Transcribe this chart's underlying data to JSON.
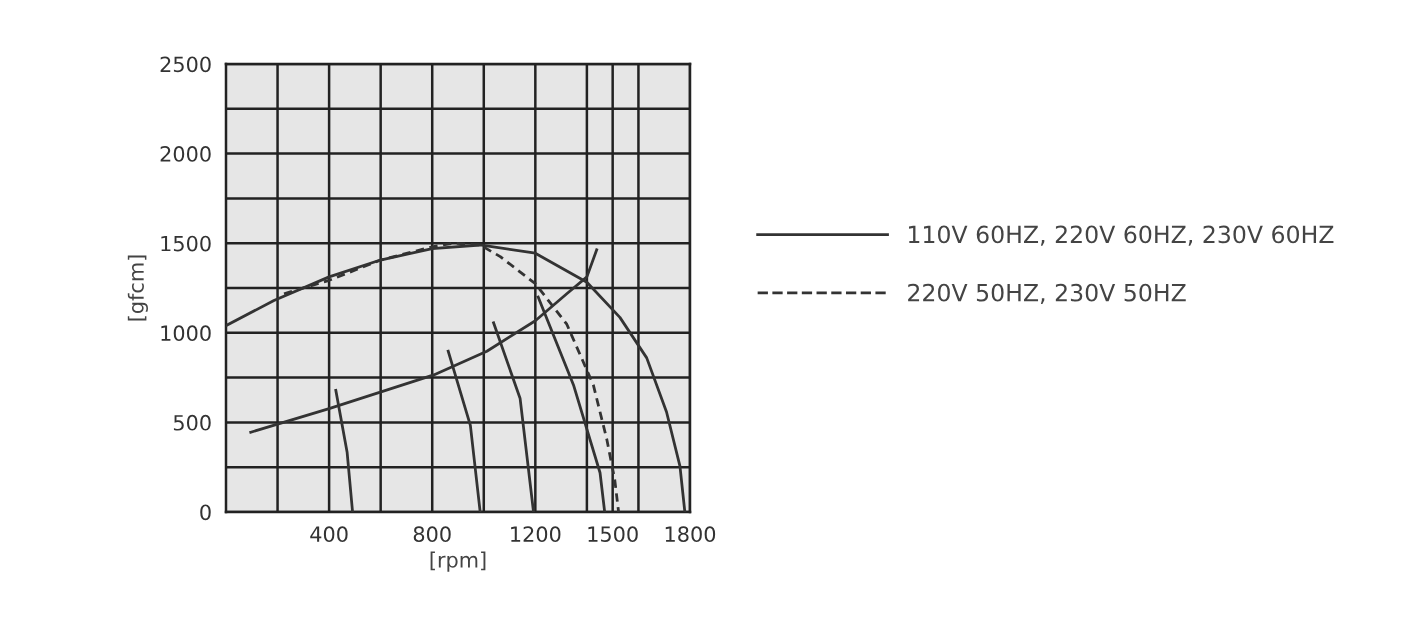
{
  "chart_data": {
    "type": "line",
    "xlabel": "[rpm]",
    "ylabel": "[gfcm]",
    "xlim": [
      0,
      1800
    ],
    "ylim": [
      0,
      2500
    ],
    "xticks": [
      {
        "value": 200,
        "label": null
      },
      400,
      {
        "value": 600,
        "label": null
      },
      800,
      {
        "value": 1000,
        "label": null
      },
      1200,
      {
        "value": 1400,
        "label": null
      },
      1500,
      {
        "value": 1600,
        "label": null
      },
      1800
    ],
    "yticks": [
      0,
      {
        "value": 250,
        "label": null
      },
      500,
      {
        "value": 750,
        "label": null
      },
      1000,
      {
        "value": 1250,
        "label": null
      },
      1500,
      {
        "value": 1750,
        "label": null
      },
      2000,
      {
        "value": 2250,
        "label": null
      },
      2500
    ],
    "grid": true,
    "legend": "right",
    "marker": "none",
    "series": [
      {
        "name": "110V 60HZ, 220V 60HZ, 230V 60HZ",
        "color": "#333333",
        "line_style": "solid",
        "x": [
          0,
          186,
          400,
          599,
          800,
          986,
          1200,
          1400,
          1528,
          1632,
          1709,
          1761,
          1780
        ],
        "values": [
          1040,
          1180,
          1312,
          1406,
          1470,
          1490,
          1444,
          1282,
          1086,
          860,
          558,
          256,
          0
        ]
      },
      {
        "name": "220V 50HZ, 230V 50HZ",
        "color": "#333333",
        "line_style": "dashed",
        "x": [
          225,
          400,
          600,
          800,
          883,
          986,
          1064,
          1200,
          1322,
          1425,
          1477,
          1508,
          1523
        ],
        "values": [
          1218,
          1293,
          1406,
          1480,
          1500,
          1490,
          1425,
          1274,
          1048,
          709,
          407,
          181,
          0
        ]
      },
      {
        "color": "#333333",
        "line_style": "solid",
        "x": [
          96,
          400,
          806,
          1012,
          1200,
          1322,
          1400,
          1438
        ],
        "values": [
          445,
          577,
          765,
          897,
          1067,
          1218,
          1312,
          1463
        ]
      },
      {
        "color": "#333333",
        "line_style": "solid",
        "x": [
          426,
          470,
          491
        ],
        "values": [
          679,
          332,
          0
        ]
      },
      {
        "color": "#333333",
        "line_style": "solid",
        "x": [
          862,
          948,
          986
        ],
        "values": [
          897,
          483,
          0
        ]
      },
      {
        "color": "#333333",
        "line_style": "solid",
        "x": [
          1038,
          1141,
          1193
        ],
        "values": [
          1056,
          633,
          0
        ]
      },
      {
        "color": "#333333",
        "line_style": "solid",
        "x": [
          1211,
          1348,
          1451,
          1469
        ],
        "values": [
          1199,
          709,
          219,
          0
        ]
      }
    ]
  }
}
